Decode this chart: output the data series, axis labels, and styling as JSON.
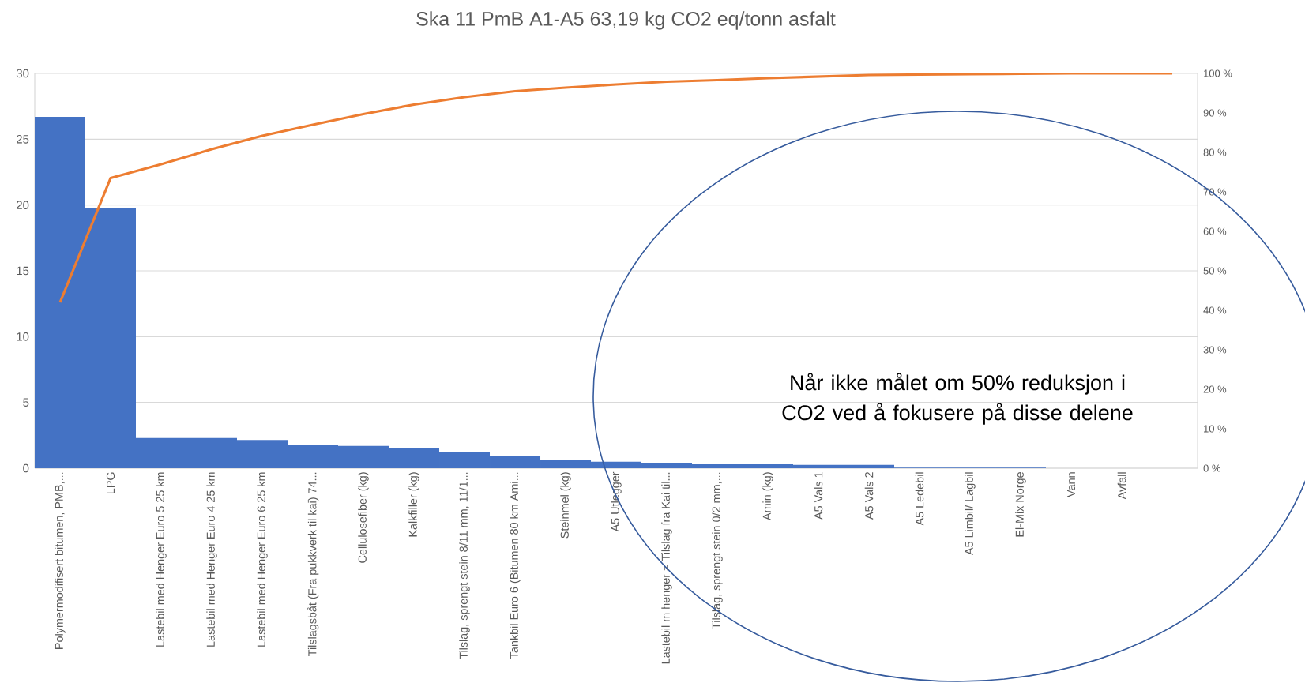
{
  "chart_data": {
    "type": "bar",
    "title": "Ska 11 PmB A1-A5 63,19 kg CO2 eq/tonn asfalt",
    "categories": [
      "Polymermodifisert bitumen, PMB,...",
      "LPG",
      "Lastebil med Henger Euro 5 25 km",
      "Lastebil med Henger Euro 4 25 km",
      "Lastebil med Henger Euro 6 25 km",
      "Tilslagsbåt (Fra pukkverk til kai) 74...",
      "Cellulosefiber (kg)",
      "Kalkfiller (kg)",
      "Tilslag, sprengt stein 8/11 mm, 11/1...",
      "Tankbil Euro 6 (Bitumen 80 km Ami...",
      "Steinmel (kg)",
      "A5 Utlegger",
      "Lastebil m henger = Tilslag fra Kai til...",
      "Tilslag, sprengt stein 0/2 mm,...",
      "Amin (kg)",
      "A5 Vals 1",
      "A5 Vals 2",
      "A5 Ledebil",
      "A5 Limbil/ Lagbil",
      "El-Mix Norge",
      "Vann",
      "Avfall",
      null
    ],
    "series": [
      {
        "color": "#4472c4",
        "values": [
          26.7,
          19.8,
          2.3,
          2.3,
          2.15,
          1.75,
          1.7,
          1.5,
          1.2,
          0.95,
          0.6,
          0.5,
          0.4,
          0.3,
          0.3,
          0.25,
          0.25,
          0.05,
          0.05,
          0.05,
          0,
          0,
          null
        ]
      },
      {
        "type": "line",
        "axis": "y2",
        "color": "#ed7d31",
        "values": [
          42,
          73.5,
          77,
          80.8,
          84.2,
          87,
          89.7,
          92.1,
          94,
          95.5,
          96.4,
          97.2,
          97.9,
          98.3,
          98.8,
          99.2,
          99.6,
          99.7,
          99.8,
          99.9,
          100,
          100,
          100
        ]
      }
    ],
    "ylim": [
      0,
      30
    ],
    "yticks": [
      0,
      5,
      10,
      15,
      20,
      25,
      30
    ],
    "y2lim": [
      0,
      100
    ],
    "y2ticks": [
      {
        "value": 0,
        "label": "0 %"
      },
      {
        "value": 10,
        "label": "10 %"
      },
      {
        "value": 20,
        "label": "20 %"
      },
      {
        "value": 30,
        "label": "30 %"
      },
      {
        "value": 40,
        "label": "40 %"
      },
      {
        "value": 50,
        "label": "50 %"
      },
      {
        "value": 60,
        "label": "60 %"
      },
      {
        "value": 70,
        "label": "70 %"
      },
      {
        "value": 80,
        "label": "80 %"
      },
      {
        "value": 90,
        "label": "90 %"
      },
      {
        "value": 100,
        "label": "100 %"
      }
    ],
    "grid": "y",
    "annotations": [
      "Når ikke målet om 50% reduksjon i CO2 ved å fokusere på disse delene"
    ]
  }
}
